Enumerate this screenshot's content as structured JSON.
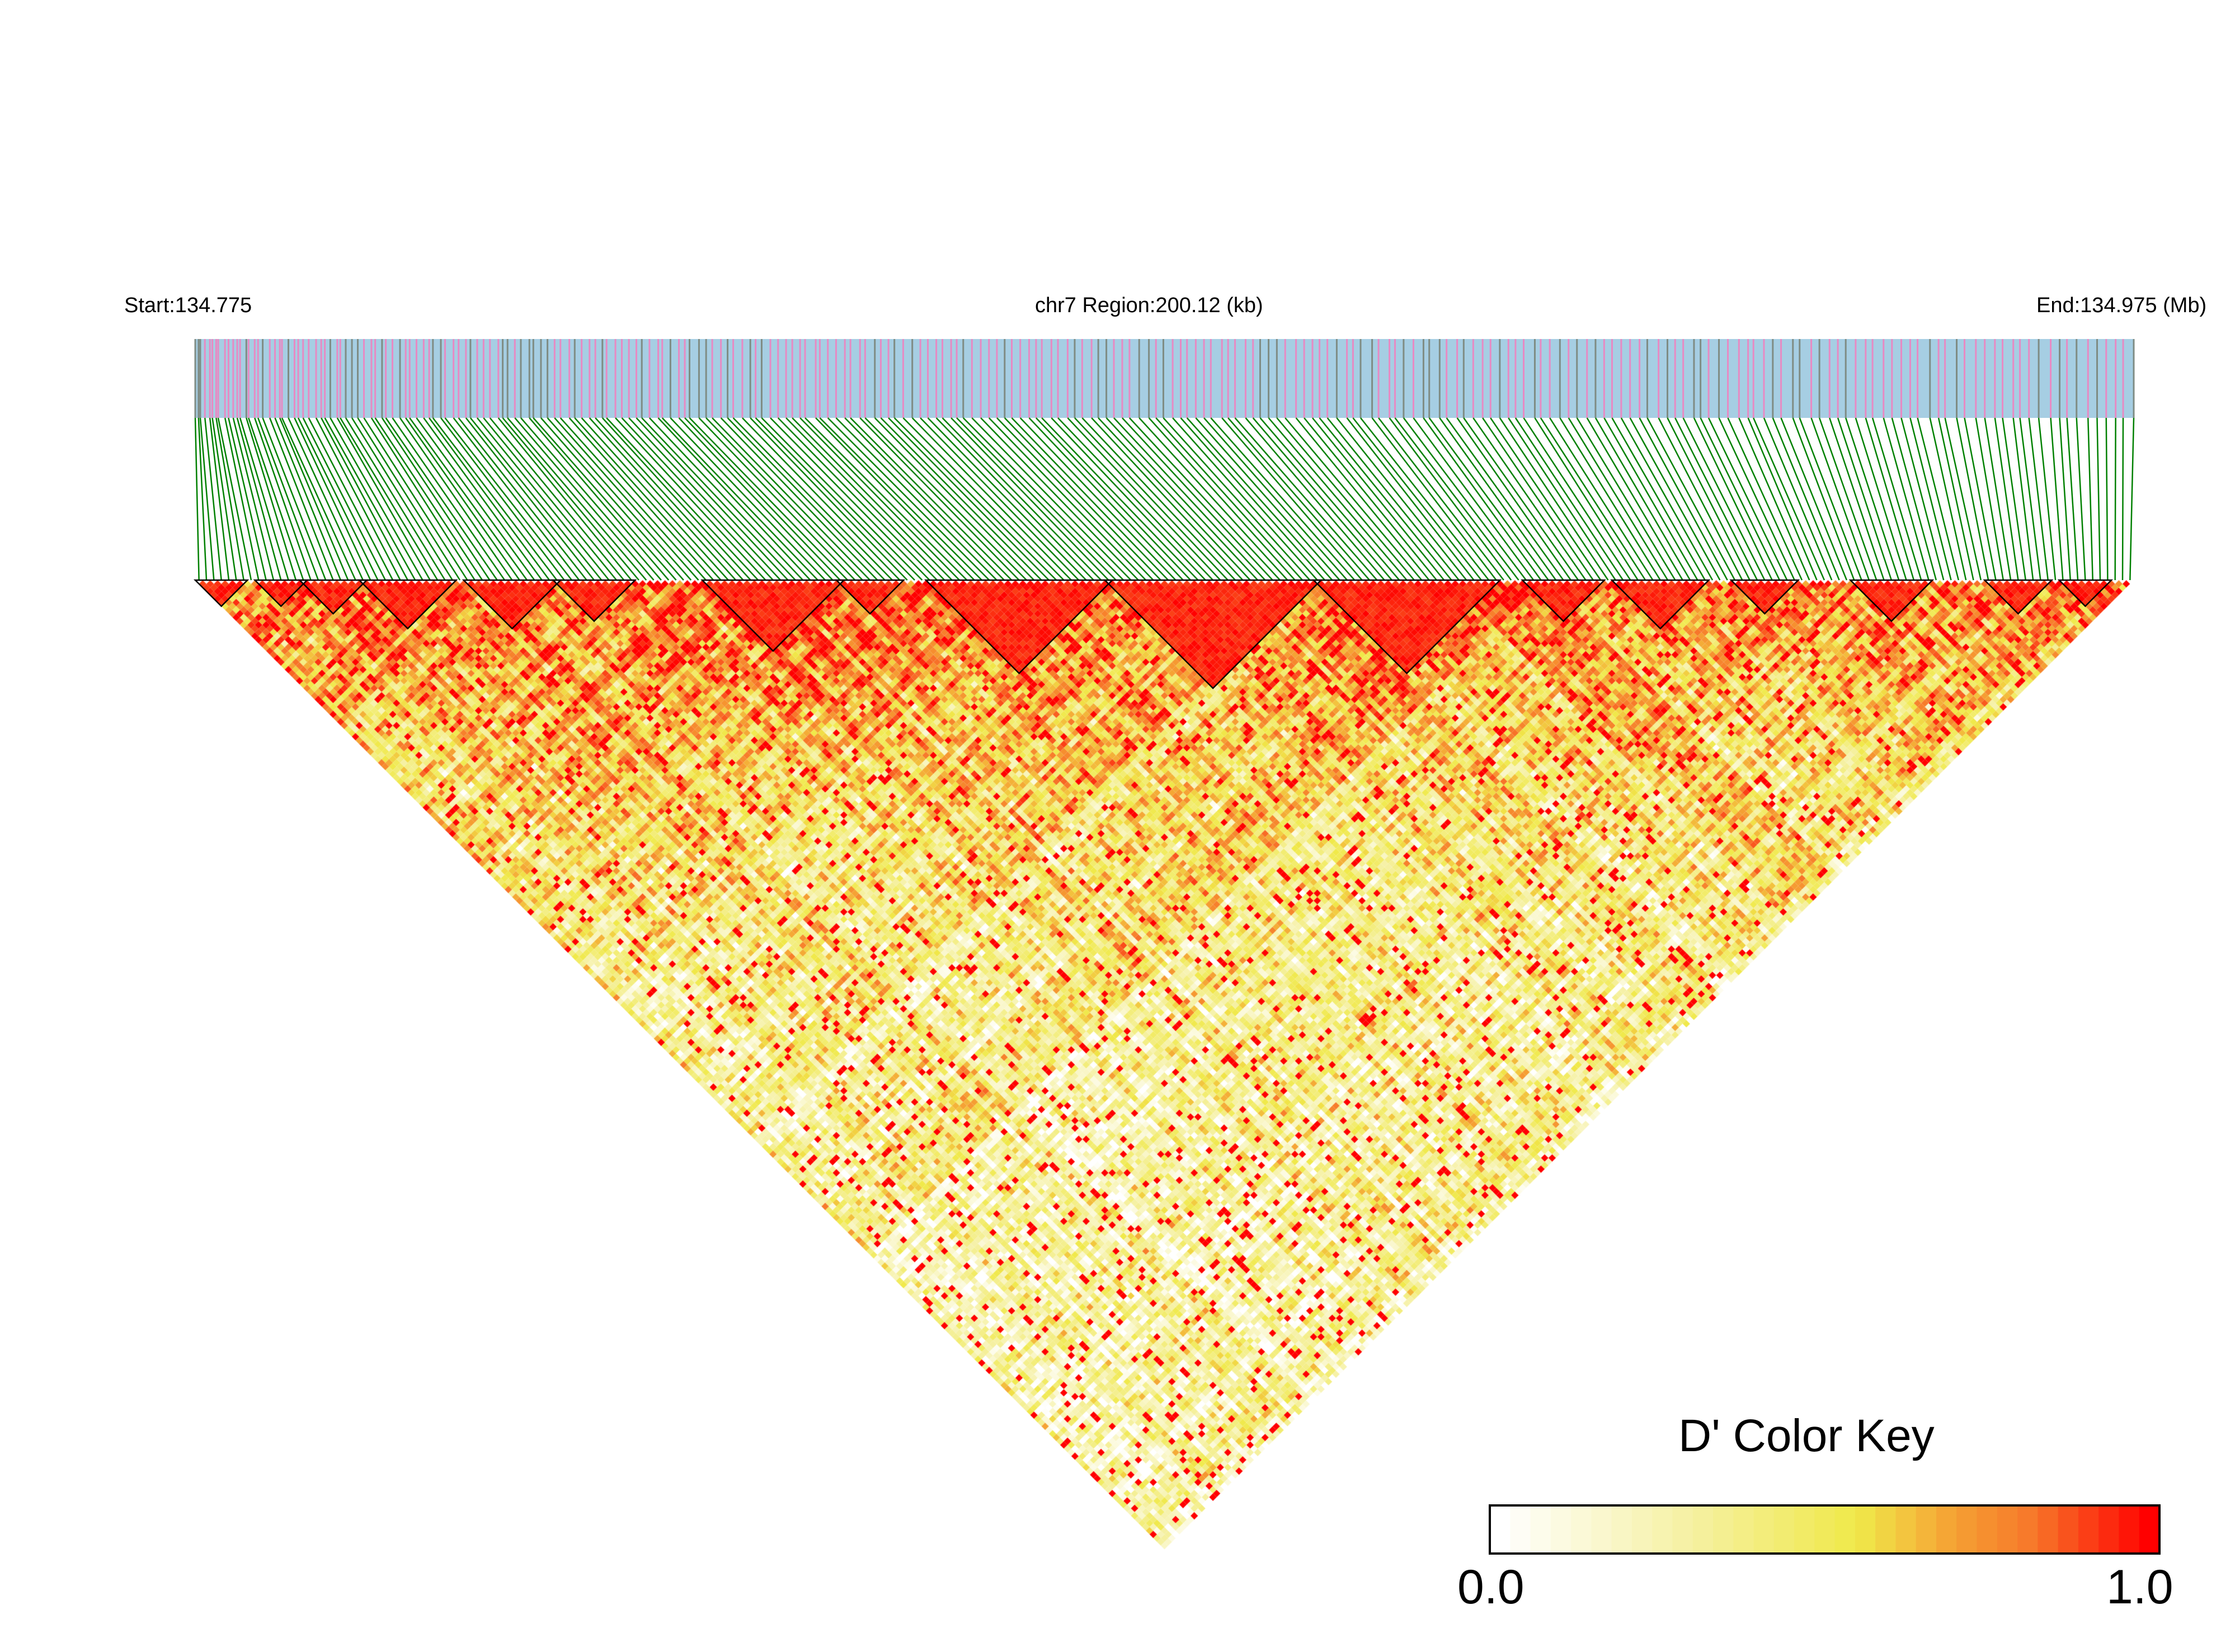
{
  "header": {
    "start_label": "Start:134.775",
    "region_label": "chr7 Region:200.12 (kb)",
    "end_label": "End:134.975 (Mb)"
  },
  "chart_data": {
    "type": "heatmap",
    "description_kind": "LD triangle heatmap (pairwise D')",
    "chromosome": "chr7",
    "start_mb": 134.775,
    "end_mb": 134.975,
    "region_kb": 200.12,
    "color_key": {
      "title": "D' Color Key",
      "min_label": "0.0",
      "max_label": "1.0",
      "range": [
        0.0,
        1.0
      ],
      "stops": [
        "#ffffff",
        "#f5f08c",
        "#f0e94a",
        "#f5a033",
        "#f7782a",
        "#ff0000"
      ]
    },
    "colors": {
      "gene_track": "#a6cee3",
      "snp_mark_pink": "#e78ac3",
      "snp_mark_grey": "#7f8c84",
      "snp_link": "#008000",
      "block_outline": "#000000"
    },
    "legend_placement": "bottom-right"
  }
}
